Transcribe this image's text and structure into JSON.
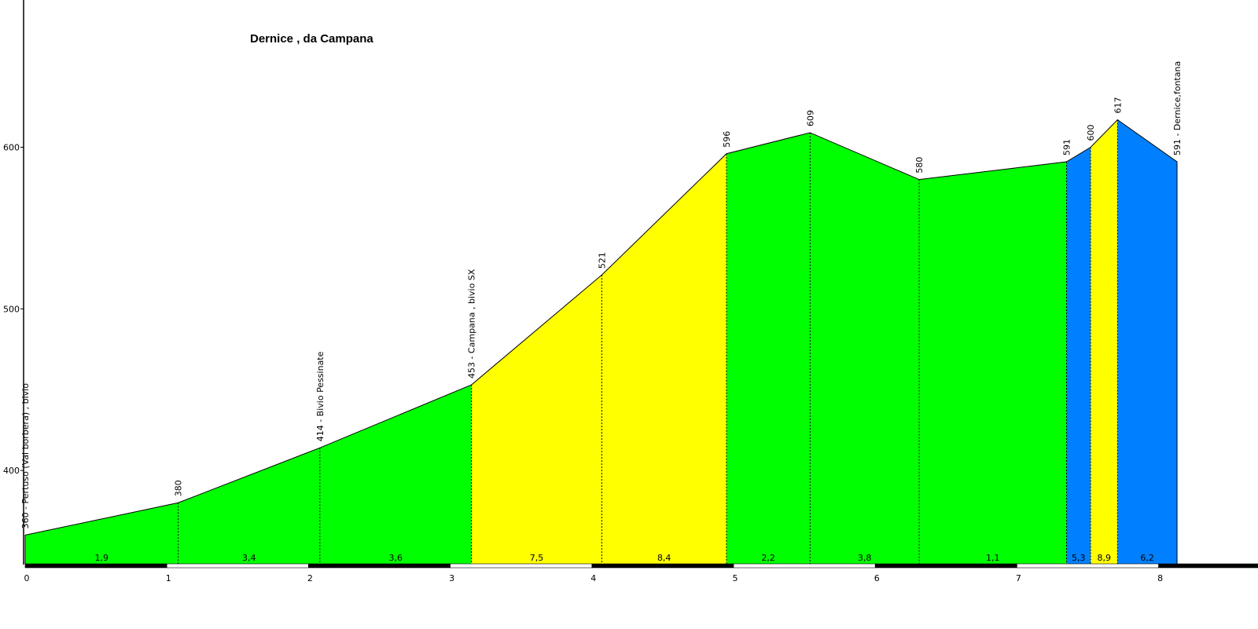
{
  "chart_data": {
    "type": "area",
    "title": "Dernice , da Campana",
    "xlabel": "",
    "ylabel": "",
    "xlim": [
      0,
      8.6
    ],
    "ylim": [
      342,
      700
    ],
    "x_ticks": [
      "0",
      "1",
      "2",
      "3",
      "4",
      "5",
      "6",
      "7",
      "8"
    ],
    "y_ticks": [
      "400",
      "500",
      "600"
    ],
    "points": [
      {
        "x": 0.0,
        "y": 360,
        "label": "360 - Pertuso (Val borbera) , bivio"
      },
      {
        "x": 1.08,
        "y": 380,
        "label": "380"
      },
      {
        "x": 2.08,
        "y": 414,
        "label": "414 - Bivio Pessinate"
      },
      {
        "x": 3.15,
        "y": 453,
        "label": "453 - Campana , bivio SX"
      },
      {
        "x": 4.07,
        "y": 521,
        "label": "521"
      },
      {
        "x": 4.95,
        "y": 596,
        "label": "596"
      },
      {
        "x": 5.54,
        "y": 609,
        "label": "609"
      },
      {
        "x": 6.31,
        "y": 580,
        "label": "580"
      },
      {
        "x": 7.35,
        "y": 591,
        "label": "591"
      },
      {
        "x": 7.52,
        "y": 600,
        "label": "600"
      },
      {
        "x": 7.71,
        "y": 617,
        "label": "617"
      },
      {
        "x": 8.13,
        "y": 591,
        "label": "591 - Dernice,fontana"
      }
    ],
    "segments": [
      {
        "grade": "1,9",
        "color": "#00ff00"
      },
      {
        "grade": "3,4",
        "color": "#00ff00"
      },
      {
        "grade": "3,6",
        "color": "#00ff00"
      },
      {
        "grade": "7,5",
        "color": "#ffff00"
      },
      {
        "grade": "8,4",
        "color": "#ffff00"
      },
      {
        "grade": "2,2",
        "color": "#00ff00"
      },
      {
        "grade": "3,8",
        "color": "#00ff00"
      },
      {
        "grade": "1,1",
        "color": "#00ff00"
      },
      {
        "grade": "5,3",
        "color": "#0080ff"
      },
      {
        "grade": "8,9",
        "color": "#ffff00"
      },
      {
        "grade": "6,2",
        "color": "#0080ff"
      }
    ],
    "grid": false
  }
}
